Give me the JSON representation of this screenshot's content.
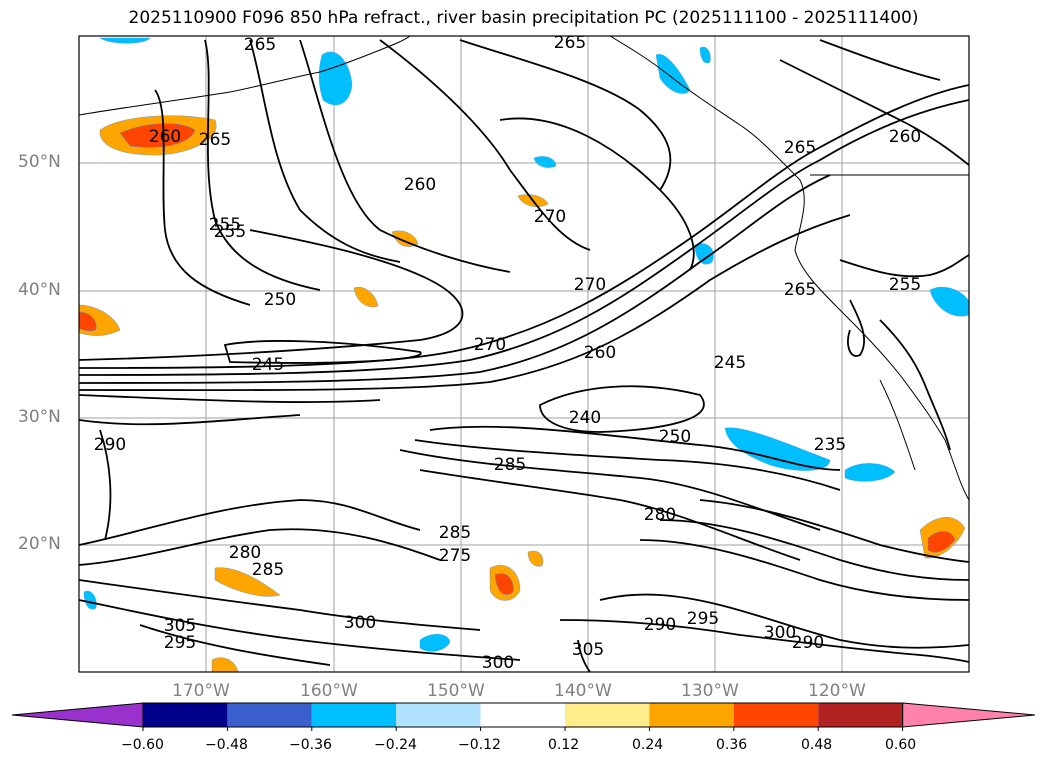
{
  "title": "2025110900 F096 850 hPa refract., river basin precipitation PC (2025111100 - 2025111400)",
  "map": {
    "lat_labels": [
      "50°N",
      "40°N",
      "30°N",
      "20°N"
    ],
    "lon_labels": [
      "170°W",
      "160°W",
      "150°W",
      "140°W",
      "130°W",
      "120°W"
    ],
    "contour_labels": [
      "265",
      "255",
      "260",
      "265",
      "265",
      "260",
      "265",
      "260",
      "255",
      "270",
      "250",
      "245",
      "270",
      "260",
      "245",
      "265",
      "255",
      "240",
      "250",
      "235",
      "290",
      "280",
      "285",
      "285",
      "275",
      "285",
      "280",
      "290",
      "295",
      "300",
      "305",
      "295",
      "300",
      "290",
      "300",
      "305",
      "270"
    ]
  },
  "colorbar": {
    "colors": [
      "#9932cc",
      "#00008b",
      "#3a5fcd",
      "#00bfff",
      "#b0e2ff",
      "#ffffff",
      "#ffec8b",
      "#ffa500",
      "#ff4500",
      "#b22222",
      "#ff82ab"
    ],
    "tick_labels": [
      "−0.60",
      "−0.48",
      "−0.36",
      "−0.24",
      "−0.12",
      "0.12",
      "0.24",
      "0.36",
      "0.48",
      "0.60"
    ]
  }
}
